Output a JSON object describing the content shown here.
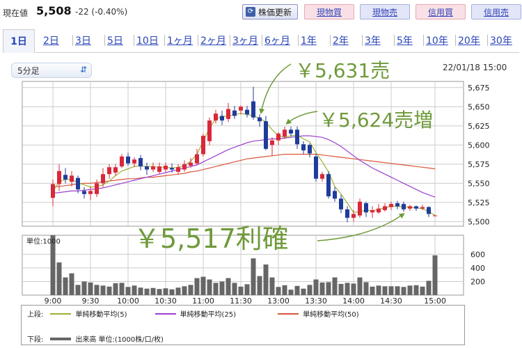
{
  "header": {
    "price_label": "現在値",
    "price": "5,508",
    "change": "-22 (-0.40%)",
    "refresh_label": "株価更新",
    "buttons": [
      {
        "label": "現物買",
        "kind": "buy"
      },
      {
        "label": "現物売",
        "kind": "sell"
      },
      {
        "label": "信用買",
        "kind": "buy"
      },
      {
        "label": "信用売",
        "kind": "sell"
      }
    ]
  },
  "tabs": [
    "1日",
    "2日",
    "3日",
    "5日",
    "10日",
    "1ヶ月",
    "2ヶ月",
    "3ヶ月",
    "6ヶ月",
    "1年",
    "2年",
    "3年",
    "5年",
    "10年",
    "20年",
    "30年"
  ],
  "active_tab": 0,
  "interval": "5分足",
  "datetime": "22/01/18 15:00",
  "legend": {
    "upper_label": "上段:",
    "lower_label": "下段:",
    "ma5": "単純移動平均(5)",
    "ma25": "単純移動平均(25)",
    "ma50": "単純移動平均(50)",
    "volume": "出来高 単位:(1000株/口/枚)"
  },
  "colors": {
    "up": "#d9283a",
    "down": "#1f3c9a",
    "ma5": "#99b233",
    "ma25": "#9a3fcf",
    "ma50": "#d9553a",
    "volume": "#666666",
    "annotation": "#6f9a3a"
  },
  "chart_data": {
    "type": "candlestick",
    "interval": "5min",
    "x_ticks": [
      "9:00",
      "9:30",
      "10:00",
      "10:30",
      "11:00",
      "11:30",
      "13:00",
      "13:30",
      "14:00",
      "14:30",
      "15:00"
    ],
    "price_ticks": [
      "5,675",
      "5,650",
      "5,625",
      "5,600",
      "5,575",
      "5,550",
      "5,525",
      "5,500"
    ],
    "price_range": [
      5494,
      5683
    ],
    "volume_unit_label": "単位:1000",
    "volume_ticks": [
      "600",
      "400",
      "200"
    ],
    "volume_range": [
      0,
      880
    ],
    "candles": [
      {
        "o": 5531,
        "c": 5549,
        "h": 5555,
        "l": 5520
      },
      {
        "o": 5549,
        "c": 5566,
        "h": 5575,
        "l": 5540
      },
      {
        "o": 5561,
        "c": 5555,
        "h": 5570,
        "l": 5550
      },
      {
        "o": 5552,
        "c": 5560,
        "h": 5566,
        "l": 5546
      },
      {
        "o": 5557,
        "c": 5542,
        "h": 5560,
        "l": 5537
      },
      {
        "o": 5540,
        "c": 5536,
        "h": 5545,
        "l": 5530
      },
      {
        "o": 5536,
        "c": 5540,
        "h": 5546,
        "l": 5528
      },
      {
        "o": 5536,
        "c": 5550,
        "h": 5555,
        "l": 5532
      },
      {
        "o": 5550,
        "c": 5562,
        "h": 5570,
        "l": 5545
      },
      {
        "o": 5562,
        "c": 5571,
        "h": 5575,
        "l": 5556
      },
      {
        "o": 5564,
        "c": 5571,
        "h": 5575,
        "l": 5560
      },
      {
        "o": 5572,
        "c": 5585,
        "h": 5588,
        "l": 5570
      },
      {
        "o": 5585,
        "c": 5576,
        "h": 5590,
        "l": 5573
      },
      {
        "o": 5576,
        "c": 5581,
        "h": 5584,
        "l": 5571
      },
      {
        "o": 5583,
        "c": 5572,
        "h": 5587,
        "l": 5567
      },
      {
        "o": 5572,
        "c": 5568,
        "h": 5577,
        "l": 5561
      },
      {
        "o": 5568,
        "c": 5572,
        "h": 5577,
        "l": 5565
      },
      {
        "o": 5565,
        "c": 5572,
        "h": 5577,
        "l": 5562
      },
      {
        "o": 5568,
        "c": 5573,
        "h": 5577,
        "l": 5565
      },
      {
        "o": 5570,
        "c": 5568,
        "h": 5576,
        "l": 5564
      },
      {
        "o": 5565,
        "c": 5571,
        "h": 5575,
        "l": 5562
      },
      {
        "o": 5568,
        "c": 5575,
        "h": 5580,
        "l": 5565
      },
      {
        "o": 5573,
        "c": 5577,
        "h": 5583,
        "l": 5570
      },
      {
        "o": 5576,
        "c": 5588,
        "h": 5595,
        "l": 5574
      },
      {
        "o": 5588,
        "c": 5612,
        "h": 5615,
        "l": 5585
      },
      {
        "o": 5605,
        "c": 5632,
        "h": 5636,
        "l": 5600
      },
      {
        "o": 5632,
        "c": 5641,
        "h": 5646,
        "l": 5628
      },
      {
        "o": 5638,
        "c": 5632,
        "h": 5645,
        "l": 5626
      },
      {
        "o": 5634,
        "c": 5647,
        "h": 5655,
        "l": 5630
      },
      {
        "o": 5645,
        "c": 5638,
        "h": 5651,
        "l": 5634
      },
      {
        "o": 5645,
        "c": 5650,
        "h": 5652,
        "l": 5640
      },
      {
        "o": 5646,
        "c": 5640,
        "h": 5651,
        "l": 5636
      },
      {
        "o": 5657,
        "c": 5636,
        "h": 5676,
        "l": 5633
      },
      {
        "o": 5636,
        "c": 5631,
        "h": 5640,
        "l": 5624
      },
      {
        "o": 5631,
        "c": 5595,
        "h": 5638,
        "l": 5593
      },
      {
        "o": 5600,
        "c": 5606,
        "h": 5610,
        "l": 5586
      },
      {
        "o": 5606,
        "c": 5615,
        "h": 5617,
        "l": 5600
      },
      {
        "o": 5611,
        "c": 5620,
        "h": 5624,
        "l": 5608
      },
      {
        "o": 5620,
        "c": 5615,
        "h": 5624,
        "l": 5611
      },
      {
        "o": 5620,
        "c": 5601,
        "h": 5624,
        "l": 5595
      },
      {
        "o": 5601,
        "c": 5593,
        "h": 5605,
        "l": 5588
      },
      {
        "o": 5600,
        "c": 5589,
        "h": 5602,
        "l": 5584
      },
      {
        "o": 5585,
        "c": 5556,
        "h": 5589,
        "l": 5552
      },
      {
        "o": 5556,
        "c": 5562,
        "h": 5565,
        "l": 5552
      },
      {
        "o": 5562,
        "c": 5533,
        "h": 5566,
        "l": 5530
      },
      {
        "o": 5540,
        "c": 5530,
        "h": 5545,
        "l": 5526
      },
      {
        "o": 5530,
        "c": 5516,
        "h": 5535,
        "l": 5511
      },
      {
        "o": 5516,
        "c": 5505,
        "h": 5520,
        "l": 5499
      },
      {
        "o": 5505,
        "c": 5510,
        "h": 5515,
        "l": 5500
      },
      {
        "o": 5508,
        "c": 5526,
        "h": 5530,
        "l": 5505
      },
      {
        "o": 5524,
        "c": 5512,
        "h": 5526,
        "l": 5506
      },
      {
        "o": 5512,
        "c": 5515,
        "h": 5520,
        "l": 5505
      },
      {
        "o": 5512,
        "c": 5517,
        "h": 5523,
        "l": 5510
      },
      {
        "o": 5515,
        "c": 5520,
        "h": 5524,
        "l": 5513
      },
      {
        "o": 5519,
        "c": 5523,
        "h": 5526,
        "l": 5515
      },
      {
        "o": 5524,
        "c": 5520,
        "h": 5527,
        "l": 5516
      },
      {
        "o": 5523,
        "c": 5516,
        "h": 5526,
        "l": 5513
      },
      {
        "o": 5517,
        "c": 5520,
        "h": 5522,
        "l": 5514
      },
      {
        "o": 5520,
        "c": 5517,
        "h": 5521,
        "l": 5514
      },
      {
        "o": 5517,
        "c": 5519,
        "h": 5522,
        "l": 5515
      },
      {
        "o": 5519,
        "c": 5510,
        "h": 5520,
        "l": 5506
      },
      {
        "o": 5508,
        "c": 5508,
        "h": 5509,
        "l": 5507
      }
    ],
    "volumes": [
      880,
      480,
      260,
      320,
      150,
      200,
      185,
      150,
      140,
      125,
      175,
      180,
      120,
      140,
      110,
      95,
      105,
      90,
      100,
      85,
      110,
      130,
      150,
      250,
      270,
      230,
      180,
      200,
      250,
      180,
      125,
      160,
      540,
      280,
      450,
      260,
      120,
      145,
      80,
      135,
      95,
      150,
      230,
      185,
      190,
      260,
      165,
      180,
      170,
      260,
      190,
      125,
      140,
      130,
      130,
      130,
      120,
      140,
      145,
      125,
      210,
      585
    ],
    "ma5": [
      5540,
      5552,
      5555,
      5555,
      5551,
      5548,
      5545,
      5546,
      5548,
      5553,
      5560,
      5566,
      5569,
      5572,
      5573,
      5572,
      5572,
      5571,
      5571,
      5570,
      5571,
      5573,
      5579,
      5588,
      5605,
      5622,
      5634,
      5637,
      5638,
      5640,
      5641,
      5640,
      5638,
      5635,
      5630,
      5620,
      5612,
      5610,
      5612,
      5613,
      5608,
      5604,
      5590,
      5578,
      5565,
      5546,
      5536,
      5524,
      5512,
      5513,
      5515,
      5514,
      5516,
      5518,
      5520,
      5520,
      5519,
      5519,
      5518,
      5517,
      5513,
      5508
    ],
    "ma25": [
      5537,
      5538,
      5539,
      5540,
      5540,
      5541,
      5542,
      5543,
      5544,
      5546,
      5548,
      5550,
      5552,
      5554,
      5556,
      5558,
      5560,
      5562,
      5564,
      5566,
      5568,
      5570,
      5572,
      5574,
      5578,
      5582,
      5586,
      5590,
      5594,
      5597,
      5600,
      5603,
      5605,
      5606,
      5607,
      5608,
      5608,
      5609,
      5610,
      5611,
      5612,
      5612,
      5611,
      5610,
      5607,
      5603,
      5598,
      5592,
      5586,
      5580,
      5575,
      5570,
      5566,
      5562,
      5558,
      5554,
      5550,
      5546,
      5542,
      5538,
      5535,
      5532
    ],
    "ma50": [
      5545,
      5546,
      5547,
      5548,
      5549,
      5550,
      5550,
      5551,
      5552,
      5553,
      5554,
      5555,
      5556,
      5556,
      5557,
      5558,
      5558,
      5559,
      5560,
      5561,
      5562,
      5563,
      5565,
      5566,
      5568,
      5570,
      5572,
      5574,
      5576,
      5578,
      5580,
      5582,
      5583,
      5584,
      5585,
      5586,
      5587,
      5588,
      5588,
      5588,
      5588,
      5588,
      5588,
      5587,
      5586,
      5585,
      5584,
      5583,
      5582,
      5581,
      5580,
      5579,
      5578,
      5577,
      5576,
      5575,
      5574,
      5573,
      5572,
      5571,
      5570,
      5569
    ],
    "annotations": [
      {
        "text": "￥5,631売",
        "candle_index": 33
      },
      {
        "text": "￥5,624売増",
        "candle_index": 37
      },
      {
        "text": "￥5,517利確",
        "candle_index": 56
      }
    ]
  }
}
